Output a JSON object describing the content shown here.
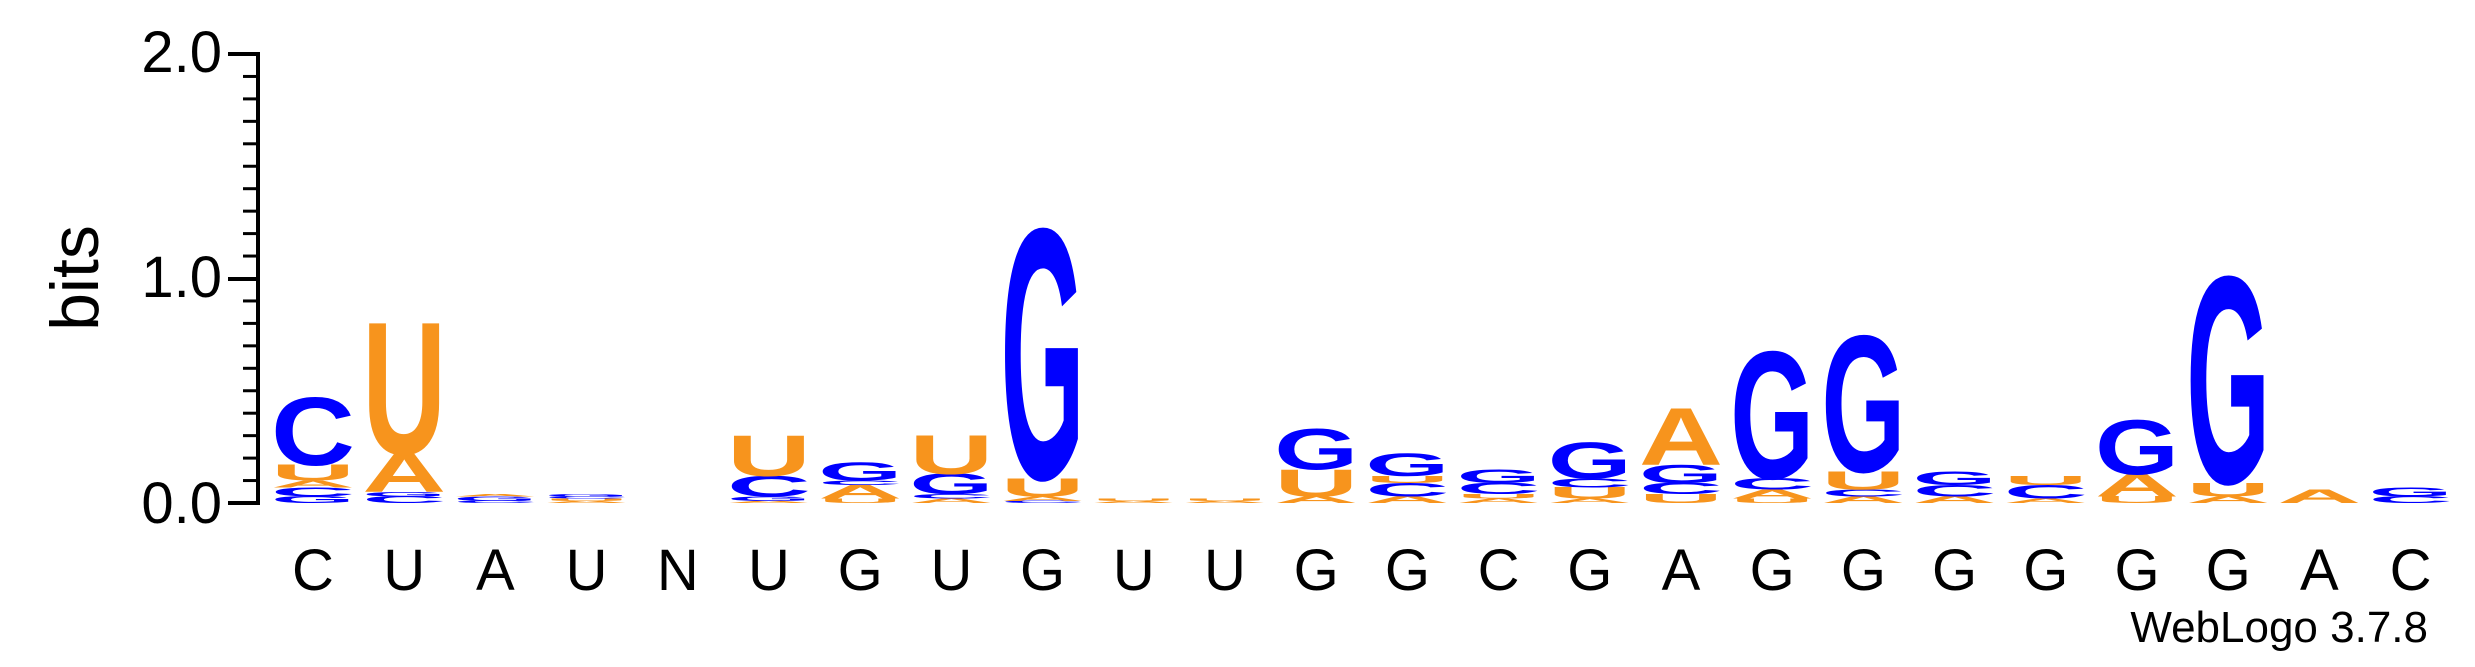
{
  "chart_data": {
    "type": "sequence-logo",
    "ylabel": "bits",
    "ylim": [
      0,
      2.0
    ],
    "yticks": [
      "0.0",
      "1.0",
      "2.0"
    ],
    "credit": "WebLogo 3.7.8",
    "colors": {
      "A": "#f7941d",
      "U": "#f7941d",
      "G": "#0000ff",
      "C": "#0000ff"
    },
    "positions": [
      {
        "label": "C",
        "stack": [
          [
            "G",
            0.03
          ],
          [
            "C",
            0.04
          ],
          [
            "A",
            0.03
          ],
          [
            "U",
            0.07
          ],
          [
            "C",
            0.3
          ]
        ]
      },
      {
        "label": "U",
        "stack": [
          [
            "C",
            0.03
          ],
          [
            "G",
            0.02
          ],
          [
            "A",
            0.17
          ],
          [
            "U",
            0.58
          ]
        ]
      },
      {
        "label": "A",
        "stack": [
          [
            "C",
            0.01
          ],
          [
            "G",
            0.02
          ],
          [
            "A",
            0.01
          ]
        ]
      },
      {
        "label": "U",
        "stack": [
          [
            "A",
            0.01
          ],
          [
            "U",
            0.01
          ],
          [
            "C",
            0.01
          ],
          [
            "G",
            0.01
          ]
        ]
      },
      {
        "label": "N",
        "stack": []
      },
      {
        "label": "U",
        "stack": [
          [
            "A",
            0.01
          ],
          [
            "G",
            0.02
          ],
          [
            "C",
            0.09
          ],
          [
            "U",
            0.18
          ]
        ]
      },
      {
        "label": "G",
        "stack": [
          [
            "U",
            0.02
          ],
          [
            "A",
            0.06
          ],
          [
            "C",
            0.02
          ],
          [
            "G",
            0.08
          ]
        ]
      },
      {
        "label": "U",
        "stack": [
          [
            "A",
            0.02
          ],
          [
            "C",
            0.02
          ],
          [
            "G",
            0.09
          ],
          [
            "U",
            0.17
          ]
        ]
      },
      {
        "label": "G",
        "stack": [
          [
            "C",
            0.01
          ],
          [
            "A",
            0.02
          ],
          [
            "U",
            0.08
          ],
          [
            "G",
            1.1
          ]
        ]
      },
      {
        "label": "U",
        "stack": [
          [
            "A",
            0.01
          ],
          [
            "U",
            0.01
          ]
        ]
      },
      {
        "label": "U",
        "stack": [
          [
            "A",
            0.01
          ],
          [
            "U",
            0.01
          ]
        ]
      },
      {
        "label": "G",
        "stack": [
          [
            "A",
            0.03
          ],
          [
            "U",
            0.12
          ],
          [
            "G",
            0.18
          ]
        ]
      },
      {
        "label": "G",
        "stack": [
          [
            "A",
            0.03
          ],
          [
            "C",
            0.06
          ],
          [
            "U",
            0.03
          ],
          [
            "G",
            0.1
          ]
        ]
      },
      {
        "label": "C",
        "stack": [
          [
            "A",
            0.02
          ],
          [
            "U",
            0.02
          ],
          [
            "C",
            0.05
          ],
          [
            "G",
            0.06
          ]
        ]
      },
      {
        "label": "G",
        "stack": [
          [
            "A",
            0.02
          ],
          [
            "U",
            0.05
          ],
          [
            "C",
            0.04
          ],
          [
            "G",
            0.16
          ]
        ]
      },
      {
        "label": "A",
        "stack": [
          [
            "U",
            0.04
          ],
          [
            "C",
            0.05
          ],
          [
            "G",
            0.08
          ],
          [
            "A",
            0.25
          ]
        ]
      },
      {
        "label": "G",
        "stack": [
          [
            "U",
            0.02
          ],
          [
            "A",
            0.04
          ],
          [
            "C",
            0.05
          ],
          [
            "G",
            0.56
          ]
        ]
      },
      {
        "label": "G",
        "stack": [
          [
            "A",
            0.03
          ],
          [
            "C",
            0.03
          ],
          [
            "U",
            0.08
          ],
          [
            "G",
            0.6
          ]
        ]
      },
      {
        "label": "G",
        "stack": [
          [
            "A",
            0.03
          ],
          [
            "C",
            0.05
          ],
          [
            "G",
            0.06
          ]
        ]
      },
      {
        "label": "G",
        "stack": [
          [
            "A",
            0.02
          ],
          [
            "C",
            0.06
          ],
          [
            "U",
            0.04
          ]
        ]
      },
      {
        "label": "G",
        "stack": [
          [
            "U",
            0.03
          ],
          [
            "A",
            0.1
          ],
          [
            "G",
            0.24
          ]
        ]
      },
      {
        "label": "G",
        "stack": [
          [
            "A",
            0.03
          ],
          [
            "U",
            0.06
          ],
          [
            "G",
            0.91
          ]
        ]
      },
      {
        "label": "A",
        "stack": [
          [
            "A",
            0.06
          ]
        ]
      },
      {
        "label": "C",
        "stack": [
          [
            "C",
            0.03
          ],
          [
            "G",
            0.04
          ]
        ]
      }
    ]
  }
}
